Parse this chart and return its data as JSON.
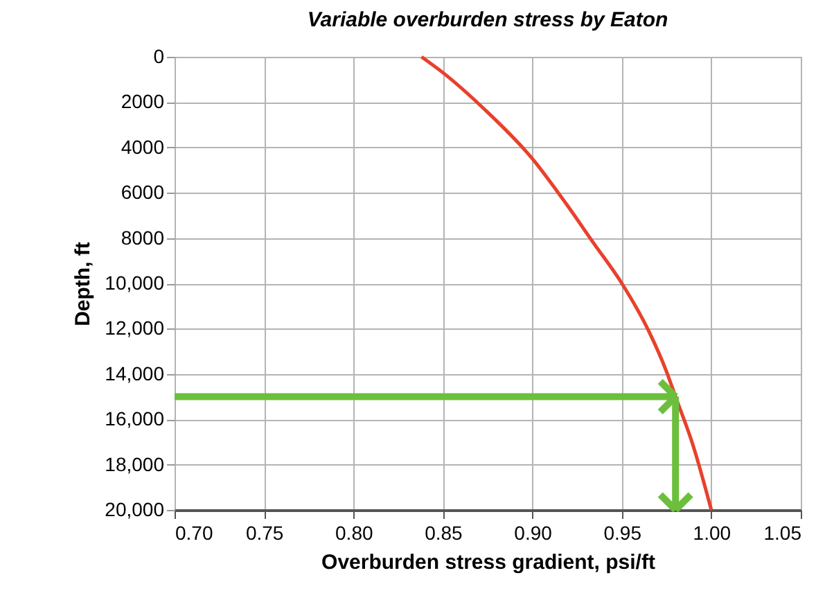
{
  "chart_data": {
    "type": "line",
    "title": "Variable overburden stress by Eaton",
    "xlabel": "Overburden stress gradient, psi/ft",
    "ylabel": "Depth, ft",
    "xlim": [
      0.7,
      1.05
    ],
    "xticks": [
      {
        "value": 0.7,
        "label": "0.70"
      },
      0.75,
      {
        "value": 0.8,
        "label": "0.80"
      },
      0.85,
      {
        "value": 0.9,
        "label": "0.90"
      },
      0.95,
      {
        "value": 1.0,
        "label": "1.00"
      },
      1.05
    ],
    "ylim": [
      20000,
      0
    ],
    "yticks": [
      0,
      2000,
      4000,
      6000,
      8000,
      {
        "value": 10000,
        "label": "10,000"
      },
      {
        "value": 12000,
        "label": "12,000"
      },
      {
        "value": 14000,
        "label": "14,000"
      },
      {
        "value": 16000,
        "label": "16,000"
      },
      {
        "value": 18000,
        "label": "18,000"
      },
      {
        "value": 20000,
        "label": "20,000"
      }
    ],
    "grid": true,
    "marker": "none",
    "line_style": "solid",
    "series": [
      {
        "color": "#e8412c",
        "x": [
          0.838,
          0.85,
          0.873,
          0.9,
          0.919,
          0.934,
          0.95,
          0.965,
          0.975,
          0.98,
          0.99,
          1.0
        ],
        "values": [
          0,
          700,
          2300,
          4500,
          6500,
          8200,
          10000,
          12100,
          13900,
          15000,
          17200,
          20000
        ]
      }
    ]
  }
}
